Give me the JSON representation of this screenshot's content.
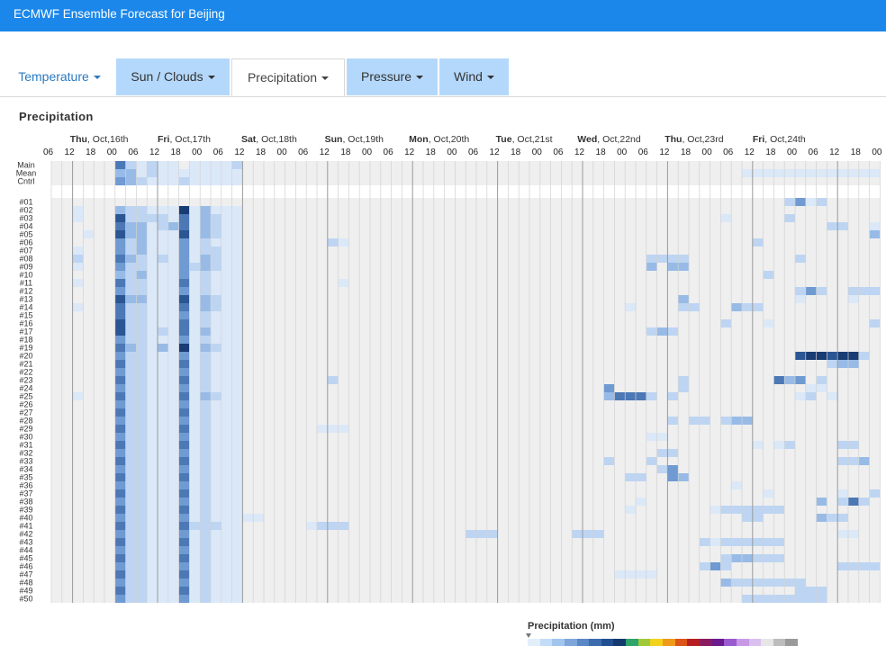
{
  "app": {
    "title": "ECMWF Ensemble Forecast for Beijing"
  },
  "tabs": [
    {
      "id": "temperature",
      "label": "Temperature",
      "state": "plain"
    },
    {
      "id": "sun-clouds",
      "label": "Sun / Clouds",
      "state": "normal"
    },
    {
      "id": "precipitation",
      "label": "Precipitation",
      "state": "active"
    },
    {
      "id": "pressure",
      "label": "Pressure",
      "state": "normal"
    },
    {
      "id": "wind",
      "label": "Wind",
      "state": "normal"
    }
  ],
  "section": {
    "title": "Precipitation"
  },
  "days": [
    {
      "dow": "Thu",
      "date": ", Oct,16th"
    },
    {
      "dow": "Fri",
      "date": ", Oct,17th"
    },
    {
      "dow": "Sat",
      "date": ", Oct,18th"
    },
    {
      "dow": "Sun",
      "date": ", Oct,19th"
    },
    {
      "dow": "Mon",
      "date": ", Oct,20th"
    },
    {
      "dow": "Tue",
      "date": ", Oct,21st"
    },
    {
      "dow": "Wed",
      "date": ", Oct,22nd"
    },
    {
      "dow": "Thu",
      "date": ", Oct,23rd"
    },
    {
      "dow": "Fri",
      "date": ", Oct,24th"
    }
  ],
  "hour_labels": [
    "06",
    "12",
    "18",
    "00",
    "06",
    "12",
    "18",
    "00",
    "06",
    "12",
    "18",
    "00",
    "06",
    "12",
    "18",
    "00",
    "06",
    "12",
    "18",
    "00",
    "06",
    "12",
    "18",
    "00",
    "06",
    "12",
    "18",
    "00",
    "06",
    "12",
    "18",
    "00",
    "06",
    "12",
    "18",
    "00",
    "06",
    "12",
    "18",
    "00"
  ],
  "summary_rows": [
    "Main",
    "Mean",
    "Cntrl"
  ],
  "member_rows": [
    "#01",
    "#02",
    "#03",
    "#04",
    "#05",
    "#06",
    "#07",
    "#08",
    "#09",
    "#10",
    "#11",
    "#12",
    "#13",
    "#14",
    "#15",
    "#16",
    "#17",
    "#18",
    "#19",
    "#20",
    "#21",
    "#22",
    "#23",
    "#24",
    "#25",
    "#26",
    "#27",
    "#28",
    "#29",
    "#30",
    "#31",
    "#32",
    "#33",
    "#34",
    "#35",
    "#36",
    "#37",
    "#38",
    "#39",
    "#40",
    "#41",
    "#42",
    "#43",
    "#44",
    "#45",
    "#46",
    "#47",
    "#48",
    "#49",
    "#50"
  ],
  "colors": {
    "app_bar": "#1b87ea",
    "tab_bg": "#b4d8fb",
    "tab_link": "#2a79c2",
    "grid_bg": "#efefef",
    "grid_line": "#d2d2d2",
    "day_line": "#9a9a9a"
  },
  "precip_scale": [
    "#e3eefb",
    "#c3dcf7",
    "#a2c5ee",
    "#7ea6da",
    "#5a88c6",
    "#3c6bae",
    "#224f90",
    "#13396f",
    "#2ea36a",
    "#a0c93a",
    "#f2d21b",
    "#ef9a1a",
    "#dd5318",
    "#b71e22",
    "#8a1a60",
    "#6a1a8c",
    "#9a5ad0",
    "#c898e6",
    "#d9c0ee",
    "#e6e6e6",
    "#bdbdbd",
    "#9a9a9a"
  ],
  "chart_data": {
    "type": "heatmap",
    "title": "Precipitation",
    "legend_title": "Precipitation (mm)",
    "x_start": "Wed, Oct,15th 18:00",
    "x_step_hours": 3,
    "columns": 78,
    "rows": [
      "Main",
      "Mean",
      "Cntrl",
      "#01",
      "#02",
      "#03",
      "#04",
      "#05",
      "#06",
      "#07",
      "#08",
      "#09",
      "#10",
      "#11",
      "#12",
      "#13",
      "#14",
      "#15",
      "#16",
      "#17",
      "#18",
      "#19",
      "#20",
      "#21",
      "#22",
      "#23",
      "#24",
      "#25",
      "#26",
      "#27",
      "#28",
      "#29",
      "#30",
      "#31",
      "#32",
      "#33",
      "#34",
      "#35",
      "#36",
      "#37",
      "#38",
      "#39",
      "#40",
      "#41",
      "#42",
      "#43",
      "#44",
      "#45",
      "#46",
      "#47",
      "#48",
      "#49",
      "#50"
    ],
    "value_scale": "0 = none, 1 (very light) to 7 (heavy)",
    "values": [
      "000000521211011112000000000000000000000000000000000000000000000000000000000000",
      "000000331211111111000000000000000000000000000000000000000000000000000000000000",
      "000000432111211111000000000000000000000000000000000000000000000000000000000000",
      "000000000000000000000000000000000000000000000000000000000000000000000000000000",
      "001000322111713111000000000000000000000000000000000000000000000000000000000000",
      "001000622221513211000000000000000000000000000000000000000000000000000000000000",
      "000000533123513211000000000000000000000000000000000000000000000000000000000000",
      "000100633111613211000000000000000000000000000000000000000000000000000000000000",
      "000000423111412111000000000000000000000000000000000000000000000000000000000000",
      "001000423111412211000000000000000000000000000000000000000000000000000000000000",
      "002000532121413211000000000000000000000000000000000000000000000000000000000000",
      "001000422111423211000000000000000000000000000000000000000000000000000000000000",
      "000000323111412111000000000000000000000000000000000000000000000000000000000000",
      "001000522111512111000000000000000000000000000000000000000000000000000000000000",
      "000000422111412111000000000000000000000000000000000000000000000000000000000000",
      "000000633111613211000000000000000000000000000000000000000000000000000000000000",
      "001000522111513211000000000000000000000000000000000000000000000000000000000000",
      "000000522111412111000000000000000000000000000000000000000000000000000000000000",
      "000000622111512111000000000000000000000000000000000000000000000000000000000000",
      "000000622121513111000000000000000000000000000000000000000000000000000000000000",
      "000000422111412111000000000000000000000000000000000000000000000000000000000000",
      "000000532131713211000000000000000000000000000000000000000000000000000000000000",
      "000000422111412111000000000000000000000000000000000000000000000000000000000000",
      "000000522111512111000000000000000000000000000000000000000000000000000000000000",
      "000000422111412111000000000000000000000000000000000000000000000000000000000000",
      "000000522111512111000000000000000000000000000000000000000000000000000000000000",
      "000000422111412111000000000000000000000000000000000000000000000000000000000000",
      "001000522111513211000000000000000000000000000000000000000000000000000000000000",
      "000000422111412111000000000000000000000000000000000000000000000000000000000000",
      "000000522111512111000000000000000000000000000000000000000000000000000000000000",
      "000000422111412111000000000000000000000000000000000000000000000000000000000000",
      "000000522111512111000000000000000000000000000000000000000000000000000000000000",
      "000000422111412111000000000000000000000000000000000000000000000000000000000000",
      "000000522111512111000000000000000000000000000000000000000000000000000000000000",
      "000000422111412111000000000000000000000000000000000000000000000000000000000000",
      "000000522111512111000000000000000000000000000000000000000000000000000000000000",
      "000000422111412111000000000000000000000000000000000000000000000000000000000000",
      "000000522111512111000000000000000000000000000000000000000000000000000000000000",
      "000000422111412111000000000000000000000000000000000000000000000000000000000000",
      "000000522111512111000000000000000000000000000000000000000000000000000000000000",
      "000000422111412111000000000000000000000000000000000000000000000000000000000000",
      "000000522111512111000000000000000000000000000000000000000000000000000000000000",
      "000000422111412111000000000000000000000000000000000000000000000000000000000000",
      "000000522111512111000000000000000000000000000000000000000000000000000000000000",
      "000000422111412111000000000000000000000000000000000000000000000000000000000000",
      "000000522111512111000000000000000000000000000000000000000000000000000000000000",
      "000000422111412111000000000000000000000000000000000000000000000000000000000000",
      "000000522111512111000000000000000000000000000000000000000000000000000000000000",
      "000000422111412111000000000000000000000000000000000000000000000000000000000000",
      "000000522111512111000000000000000000000000000000000000000000000000000000000000",
      "000000422111412111000000000000000000000000000000000000000000000000000000000000",
      "000000522111512111000000000000000000000000000000000000000000000000000000000000",
      "000000422111412111000000000000000000000000000000000000000000000000000000000000"
    ],
    "extra_cells": [
      [
        1,
        65,
        1
      ],
      [
        1,
        66,
        1
      ],
      [
        1,
        67,
        1
      ],
      [
        1,
        68,
        1
      ],
      [
        1,
        69,
        1
      ],
      [
        1,
        70,
        1
      ],
      [
        1,
        71,
        1
      ],
      [
        1,
        72,
        1
      ],
      [
        1,
        73,
        1
      ],
      [
        1,
        74,
        1
      ],
      [
        1,
        75,
        1
      ],
      [
        1,
        76,
        1
      ],
      [
        1,
        77,
        1
      ],
      [
        3,
        69,
        2
      ],
      [
        3,
        70,
        4
      ],
      [
        3,
        71,
        1
      ],
      [
        3,
        72,
        2
      ],
      [
        5,
        63,
        1
      ],
      [
        5,
        69,
        2
      ],
      [
        6,
        73,
        2
      ],
      [
        6,
        74,
        2
      ],
      [
        6,
        77,
        1
      ],
      [
        7,
        77,
        3
      ],
      [
        8,
        26,
        2
      ],
      [
        8,
        27,
        1
      ],
      [
        8,
        66,
        2
      ],
      [
        10,
        56,
        2
      ],
      [
        10,
        57,
        2
      ],
      [
        10,
        58,
        2
      ],
      [
        10,
        59,
        2
      ],
      [
        10,
        70,
        2
      ],
      [
        11,
        56,
        3
      ],
      [
        11,
        58,
        3
      ],
      [
        11,
        59,
        3
      ],
      [
        12,
        67,
        2
      ],
      [
        13,
        27,
        1
      ],
      [
        14,
        70,
        2
      ],
      [
        14,
        71,
        4
      ],
      [
        14,
        72,
        2
      ],
      [
        14,
        75,
        2
      ],
      [
        14,
        76,
        2
      ],
      [
        14,
        77,
        2
      ],
      [
        15,
        59,
        3
      ],
      [
        15,
        70,
        1
      ],
      [
        15,
        75,
        1
      ],
      [
        16,
        54,
        1
      ],
      [
        16,
        59,
        2
      ],
      [
        16,
        60,
        2
      ],
      [
        16,
        64,
        3
      ],
      [
        16,
        65,
        2
      ],
      [
        16,
        66,
        2
      ],
      [
        18,
        63,
        2
      ],
      [
        18,
        67,
        1
      ],
      [
        18,
        77,
        2
      ],
      [
        19,
        56,
        2
      ],
      [
        19,
        57,
        3
      ],
      [
        19,
        58,
        2
      ],
      [
        22,
        70,
        6
      ],
      [
        22,
        71,
        7
      ],
      [
        22,
        72,
        7
      ],
      [
        22,
        73,
        6
      ],
      [
        22,
        74,
        7
      ],
      [
        22,
        75,
        7
      ],
      [
        22,
        76,
        2
      ],
      [
        23,
        73,
        2
      ],
      [
        23,
        74,
        3
      ],
      [
        23,
        75,
        3
      ],
      [
        25,
        26,
        2
      ],
      [
        25,
        59,
        2
      ],
      [
        25,
        68,
        5
      ],
      [
        25,
        69,
        3
      ],
      [
        25,
        70,
        4
      ],
      [
        25,
        72,
        2
      ],
      [
        26,
        52,
        4
      ],
      [
        26,
        59,
        2
      ],
      [
        26,
        71,
        1
      ],
      [
        26,
        72,
        1
      ],
      [
        27,
        52,
        3
      ],
      [
        27,
        53,
        5
      ],
      [
        27,
        54,
        5
      ],
      [
        27,
        55,
        5
      ],
      [
        27,
        56,
        2
      ],
      [
        27,
        58,
        2
      ],
      [
        27,
        70,
        1
      ],
      [
        27,
        71,
        2
      ],
      [
        27,
        73,
        1
      ],
      [
        30,
        58,
        2
      ],
      [
        30,
        60,
        2
      ],
      [
        30,
        61,
        2
      ],
      [
        30,
        63,
        2
      ],
      [
        30,
        64,
        3
      ],
      [
        30,
        65,
        3
      ],
      [
        31,
        25,
        1
      ],
      [
        31,
        26,
        1
      ],
      [
        31,
        27,
        1
      ],
      [
        32,
        56,
        1
      ],
      [
        32,
        57,
        1
      ],
      [
        33,
        66,
        1
      ],
      [
        33,
        68,
        1
      ],
      [
        33,
        69,
        2
      ],
      [
        33,
        74,
        2
      ],
      [
        33,
        75,
        2
      ],
      [
        34,
        57,
        2
      ],
      [
        34,
        58,
        2
      ],
      [
        35,
        52,
        2
      ],
      [
        35,
        56,
        2
      ],
      [
        35,
        74,
        2
      ],
      [
        35,
        75,
        2
      ],
      [
        35,
        76,
        3
      ],
      [
        36,
        57,
        2
      ],
      [
        36,
        58,
        4
      ],
      [
        37,
        54,
        2
      ],
      [
        37,
        55,
        2
      ],
      [
        37,
        58,
        4
      ],
      [
        37,
        59,
        3
      ],
      [
        38,
        64,
        1
      ],
      [
        39,
        67,
        1
      ],
      [
        39,
        74,
        1
      ],
      [
        39,
        77,
        2
      ],
      [
        40,
        55,
        1
      ],
      [
        40,
        72,
        3
      ],
      [
        40,
        74,
        2
      ],
      [
        40,
        75,
        5
      ],
      [
        40,
        76,
        2
      ],
      [
        41,
        54,
        1
      ],
      [
        41,
        62,
        1
      ],
      [
        41,
        63,
        2
      ],
      [
        41,
        64,
        2
      ],
      [
        41,
        65,
        2
      ],
      [
        41,
        66,
        2
      ],
      [
        41,
        67,
        2
      ],
      [
        41,
        68,
        2
      ],
      [
        42,
        18,
        1
      ],
      [
        42,
        19,
        1
      ],
      [
        42,
        65,
        2
      ],
      [
        42,
        66,
        2
      ],
      [
        42,
        72,
        3
      ],
      [
        42,
        73,
        2
      ],
      [
        42,
        74,
        2
      ],
      [
        43,
        13,
        2
      ],
      [
        43,
        14,
        2
      ],
      [
        43,
        15,
        2
      ],
      [
        43,
        24,
        1
      ],
      [
        43,
        25,
        2
      ],
      [
        43,
        26,
        2
      ],
      [
        43,
        27,
        2
      ],
      [
        44,
        39,
        2
      ],
      [
        44,
        40,
        2
      ],
      [
        44,
        41,
        2
      ],
      [
        44,
        49,
        2
      ],
      [
        44,
        50,
        2
      ],
      [
        44,
        51,
        2
      ],
      [
        44,
        74,
        1
      ],
      [
        44,
        75,
        1
      ],
      [
        45,
        61,
        2
      ],
      [
        45,
        62,
        1
      ],
      [
        45,
        63,
        2
      ],
      [
        45,
        64,
        2
      ],
      [
        45,
        65,
        2
      ],
      [
        45,
        66,
        2
      ],
      [
        45,
        67,
        2
      ],
      [
        45,
        68,
        2
      ],
      [
        47,
        63,
        2
      ],
      [
        47,
        64,
        3
      ],
      [
        47,
        65,
        3
      ],
      [
        47,
        66,
        2
      ],
      [
        47,
        67,
        2
      ],
      [
        47,
        68,
        2
      ],
      [
        48,
        61,
        2
      ],
      [
        48,
        62,
        4
      ],
      [
        48,
        63,
        2
      ],
      [
        48,
        74,
        2
      ],
      [
        48,
        75,
        2
      ],
      [
        48,
        76,
        2
      ],
      [
        48,
        77,
        2
      ],
      [
        49,
        53,
        1
      ],
      [
        49,
        54,
        1
      ],
      [
        49,
        55,
        1
      ],
      [
        49,
        56,
        1
      ],
      [
        50,
        63,
        3
      ],
      [
        50,
        64,
        2
      ],
      [
        50,
        65,
        2
      ],
      [
        50,
        66,
        2
      ],
      [
        50,
        67,
        2
      ],
      [
        50,
        68,
        2
      ],
      [
        50,
        69,
        2
      ],
      [
        50,
        70,
        2
      ],
      [
        51,
        70,
        2
      ],
      [
        51,
        71,
        2
      ],
      [
        51,
        72,
        2
      ],
      [
        52,
        65,
        2
      ],
      [
        52,
        66,
        2
      ],
      [
        52,
        67,
        2
      ],
      [
        52,
        68,
        2
      ],
      [
        52,
        69,
        2
      ],
      [
        52,
        70,
        2
      ],
      [
        52,
        71,
        2
      ],
      [
        52,
        72,
        2
      ]
    ]
  }
}
